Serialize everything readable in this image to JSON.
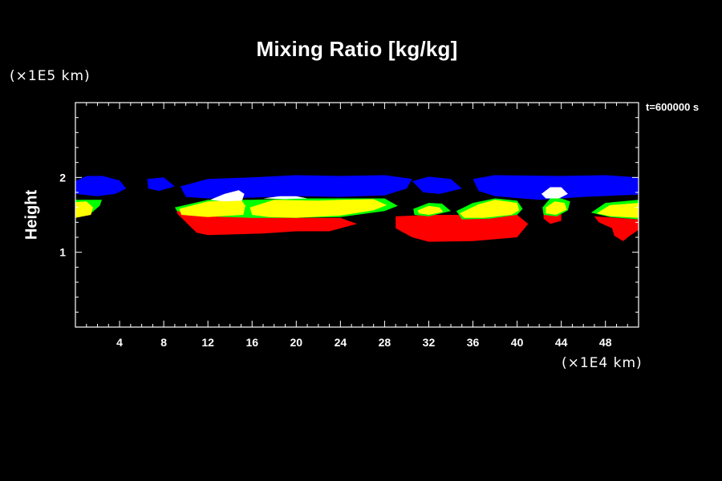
{
  "colors": {
    "background": "#000000",
    "axis": "#ffffff",
    "level_1": "#ff0000",
    "level_2": "#ffff00",
    "level_3": "#00ff00",
    "level_4": "#ffffff",
    "level_5": "#0000ff"
  },
  "chart_data": {
    "type": "filled-contour",
    "title": "Mixing Ratio [kg/kg]",
    "xlabel": "",
    "ylabel": "Height",
    "x_scale_label": "(×1E4 km)",
    "y_scale_label": "(×1E5 km)",
    "time_label": "t=600000 s",
    "xlim": [
      0,
      51
    ],
    "ylim": [
      0,
      3
    ],
    "x_ticks": [
      4,
      8,
      12,
      16,
      20,
      24,
      28,
      32,
      36,
      40,
      44,
      48
    ],
    "y_ticks": [
      1,
      2
    ],
    "grid": false,
    "regions": [
      {
        "color": "level_5",
        "polygon": [
          [
            0,
            1.95
          ],
          [
            1,
            2.02
          ],
          [
            2.5,
            2.02
          ],
          [
            4,
            1.96
          ],
          [
            4.6,
            1.85
          ],
          [
            3.6,
            1.78
          ],
          [
            2,
            1.75
          ],
          [
            0,
            1.78
          ]
        ]
      },
      {
        "color": "level_5",
        "polygon": [
          [
            6.5,
            1.98
          ],
          [
            8,
            2.0
          ],
          [
            9,
            1.88
          ],
          [
            7.6,
            1.82
          ],
          [
            6.6,
            1.85
          ]
        ]
      },
      {
        "color": "level_5",
        "polygon": [
          [
            9.5,
            1.88
          ],
          [
            12,
            1.98
          ],
          [
            16,
            2.0
          ],
          [
            20,
            2.03
          ],
          [
            24,
            2.02
          ],
          [
            28,
            2.03
          ],
          [
            30.5,
            1.98
          ],
          [
            30,
            1.85
          ],
          [
            28,
            1.76
          ],
          [
            24,
            1.74
          ],
          [
            20,
            1.75
          ],
          [
            16,
            1.73
          ],
          [
            12,
            1.72
          ],
          [
            10,
            1.74
          ]
        ]
      },
      {
        "color": "level_5",
        "polygon": [
          [
            30.5,
            1.95
          ],
          [
            32,
            2.01
          ],
          [
            34,
            1.98
          ],
          [
            35,
            1.85
          ],
          [
            33,
            1.78
          ],
          [
            31.5,
            1.8
          ]
        ]
      },
      {
        "color": "level_5",
        "polygon": [
          [
            36,
            1.98
          ],
          [
            38,
            2.03
          ],
          [
            44,
            2.02
          ],
          [
            48,
            2.03
          ],
          [
            51,
            2.0
          ],
          [
            51,
            1.77
          ],
          [
            46,
            1.74
          ],
          [
            44,
            1.72
          ],
          [
            42,
            1.7
          ],
          [
            38,
            1.75
          ],
          [
            36.5,
            1.82
          ]
        ]
      },
      {
        "color": "level_1",
        "polygon": [
          [
            9.2,
            1.58
          ],
          [
            12,
            1.49
          ],
          [
            16,
            1.47
          ],
          [
            20,
            1.46
          ],
          [
            24,
            1.46
          ],
          [
            25.5,
            1.38
          ],
          [
            23,
            1.28
          ],
          [
            20,
            1.28
          ],
          [
            17,
            1.25
          ],
          [
            12,
            1.23
          ],
          [
            11,
            1.26
          ],
          [
            10.5,
            1.33
          ],
          [
            9.2,
            1.52
          ]
        ]
      },
      {
        "color": "level_1",
        "polygon": [
          [
            29,
            1.48
          ],
          [
            32,
            1.5
          ],
          [
            36,
            1.5
          ],
          [
            40,
            1.5
          ],
          [
            41,
            1.38
          ],
          [
            40,
            1.2
          ],
          [
            36,
            1.15
          ],
          [
            32,
            1.14
          ],
          [
            30.5,
            1.2
          ],
          [
            29,
            1.32
          ]
        ]
      },
      {
        "color": "level_1",
        "polygon": [
          [
            42.4,
            1.55
          ],
          [
            44,
            1.55
          ],
          [
            44,
            1.42
          ],
          [
            43,
            1.38
          ],
          [
            42.4,
            1.45
          ]
        ]
      },
      {
        "color": "level_1",
        "polygon": [
          [
            47,
            1.48
          ],
          [
            51,
            1.44
          ],
          [
            51,
            1.3
          ],
          [
            50.2,
            1.22
          ],
          [
            49.6,
            1.15
          ],
          [
            48.8,
            1.22
          ],
          [
            48.6,
            1.32
          ],
          [
            47.4,
            1.4
          ]
        ]
      },
      {
        "color": "level_3",
        "polygon": [
          [
            0,
            1.7
          ],
          [
            1.2,
            1.7
          ],
          [
            2.4,
            1.7
          ],
          [
            2.2,
            1.62
          ],
          [
            1.4,
            1.52
          ],
          [
            0,
            1.48
          ]
        ]
      },
      {
        "color": "level_3",
        "polygon": [
          [
            9,
            1.6
          ],
          [
            12,
            1.7
          ],
          [
            16,
            1.7
          ],
          [
            20,
            1.72
          ],
          [
            24,
            1.72
          ],
          [
            28,
            1.72
          ],
          [
            29.2,
            1.62
          ],
          [
            28,
            1.55
          ],
          [
            24,
            1.47
          ],
          [
            20,
            1.46
          ],
          [
            16,
            1.46
          ],
          [
            12,
            1.48
          ],
          [
            9.2,
            1.55
          ]
        ]
      },
      {
        "color": "level_3",
        "polygon": [
          [
            30.6,
            1.58
          ],
          [
            32,
            1.66
          ],
          [
            33.2,
            1.65
          ],
          [
            34,
            1.55
          ],
          [
            32,
            1.48
          ],
          [
            30.7,
            1.5
          ]
        ]
      },
      {
        "color": "level_3",
        "polygon": [
          [
            34.5,
            1.55
          ],
          [
            36,
            1.66
          ],
          [
            38,
            1.72
          ],
          [
            40,
            1.69
          ],
          [
            40.5,
            1.58
          ],
          [
            40,
            1.5
          ],
          [
            37.5,
            1.45
          ],
          [
            35,
            1.44
          ]
        ]
      },
      {
        "color": "level_3",
        "polygon": [
          [
            42.3,
            1.6
          ],
          [
            43,
            1.72
          ],
          [
            44,
            1.72
          ],
          [
            44.8,
            1.68
          ],
          [
            44.6,
            1.56
          ],
          [
            43.6,
            1.48
          ],
          [
            42.4,
            1.5
          ]
        ]
      },
      {
        "color": "level_3",
        "polygon": [
          [
            46.7,
            1.53
          ],
          [
            48,
            1.66
          ],
          [
            51,
            1.7
          ],
          [
            51,
            1.44
          ],
          [
            48.4,
            1.47
          ]
        ]
      },
      {
        "color": "level_2",
        "polygon": [
          [
            0,
            1.67
          ],
          [
            1,
            1.68
          ],
          [
            1.6,
            1.6
          ],
          [
            1.4,
            1.5
          ],
          [
            0,
            1.46
          ]
        ]
      },
      {
        "color": "level_2",
        "polygon": [
          [
            9.4,
            1.58
          ],
          [
            12,
            1.68
          ],
          [
            15,
            1.7
          ],
          [
            15.4,
            1.62
          ],
          [
            15.2,
            1.5
          ],
          [
            12,
            1.47
          ],
          [
            9.6,
            1.5
          ]
        ]
      },
      {
        "color": "level_2",
        "polygon": [
          [
            15.8,
            1.6
          ],
          [
            18,
            1.7
          ],
          [
            22,
            1.69
          ],
          [
            24,
            1.7
          ],
          [
            27,
            1.71
          ],
          [
            28.2,
            1.63
          ],
          [
            27,
            1.56
          ],
          [
            24,
            1.49
          ],
          [
            20,
            1.46
          ],
          [
            17.5,
            1.47
          ],
          [
            16,
            1.5
          ]
        ]
      },
      {
        "color": "level_2",
        "polygon": [
          [
            31,
            1.56
          ],
          [
            32,
            1.62
          ],
          [
            33,
            1.6
          ],
          [
            33.3,
            1.54
          ],
          [
            32,
            1.5
          ],
          [
            31.1,
            1.52
          ]
        ]
      },
      {
        "color": "level_2",
        "polygon": [
          [
            34.8,
            1.52
          ],
          [
            36.5,
            1.64
          ],
          [
            38,
            1.7
          ],
          [
            40,
            1.66
          ],
          [
            40.2,
            1.56
          ],
          [
            39.5,
            1.5
          ],
          [
            37,
            1.46
          ],
          [
            35.2,
            1.46
          ]
        ]
      },
      {
        "color": "level_2",
        "polygon": [
          [
            42.6,
            1.6
          ],
          [
            43.4,
            1.68
          ],
          [
            44.3,
            1.66
          ],
          [
            44.5,
            1.57
          ],
          [
            43.5,
            1.5
          ],
          [
            42.6,
            1.52
          ]
        ]
      },
      {
        "color": "level_2",
        "polygon": [
          [
            47.2,
            1.52
          ],
          [
            48.4,
            1.63
          ],
          [
            51,
            1.66
          ],
          [
            51,
            1.46
          ],
          [
            48.5,
            1.48
          ]
        ]
      },
      {
        "color": "level_4",
        "polygon": [
          [
            12.2,
            1.7
          ],
          [
            13.5,
            1.78
          ],
          [
            14.8,
            1.83
          ],
          [
            15.3,
            1.78
          ],
          [
            15.1,
            1.69
          ],
          [
            13.5,
            1.68
          ]
        ]
      },
      {
        "color": "level_4",
        "polygon": [
          [
            42.2,
            1.78
          ],
          [
            43,
            1.87
          ],
          [
            44,
            1.87
          ],
          [
            44.6,
            1.78
          ],
          [
            43.8,
            1.72
          ],
          [
            42.6,
            1.72
          ]
        ]
      },
      {
        "color": "level_4",
        "polygon": [
          [
            17,
            1.72
          ],
          [
            18.5,
            1.75
          ],
          [
            20,
            1.75
          ],
          [
            21,
            1.72
          ],
          [
            19,
            1.71
          ]
        ]
      }
    ]
  }
}
